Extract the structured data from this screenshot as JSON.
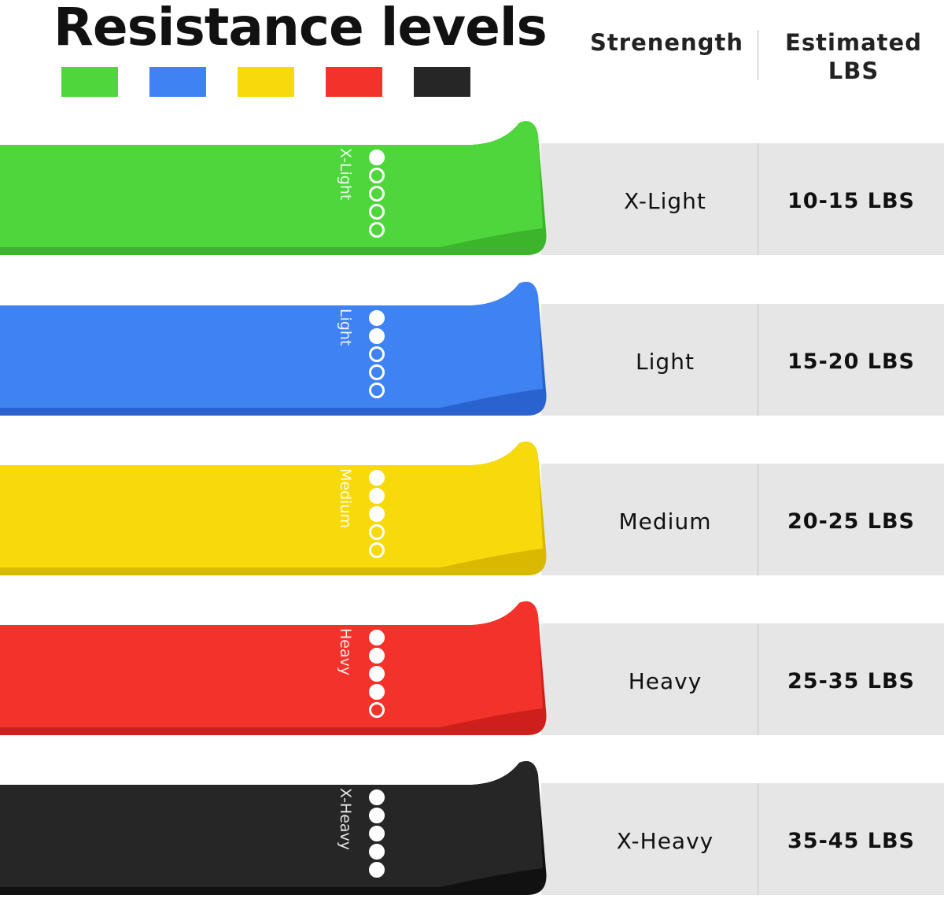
{
  "title": "Resistance levels",
  "headers": {
    "strength": "Strenength",
    "lbs": "Estimated LBS"
  },
  "levels": [
    {
      "band_label": "X-Light",
      "strength": "X-Light",
      "lbs": "10-15 LBS",
      "color": "#4ed63c",
      "shade": "#3cb52c",
      "level": 1
    },
    {
      "band_label": "Light",
      "strength": "Light",
      "lbs": "15-20 LBS",
      "color": "#3f82f2",
      "shade": "#2a63cf",
      "level": 2
    },
    {
      "band_label": "Medium",
      "strength": "Medium",
      "lbs": "20-25 LBS",
      "color": "#f6da0c",
      "shade": "#d9b800",
      "level": 3
    },
    {
      "band_label": "Heavy",
      "strength": "Heavy",
      "lbs": "25-35 LBS",
      "color": "#f3332b",
      "shade": "#cf1f1a",
      "level": 4
    },
    {
      "band_label": "X-Heavy",
      "strength": "X-Heavy",
      "lbs": "35-45 LBS",
      "color": "#262626",
      "shade": "#111111",
      "level": 5
    }
  ]
}
